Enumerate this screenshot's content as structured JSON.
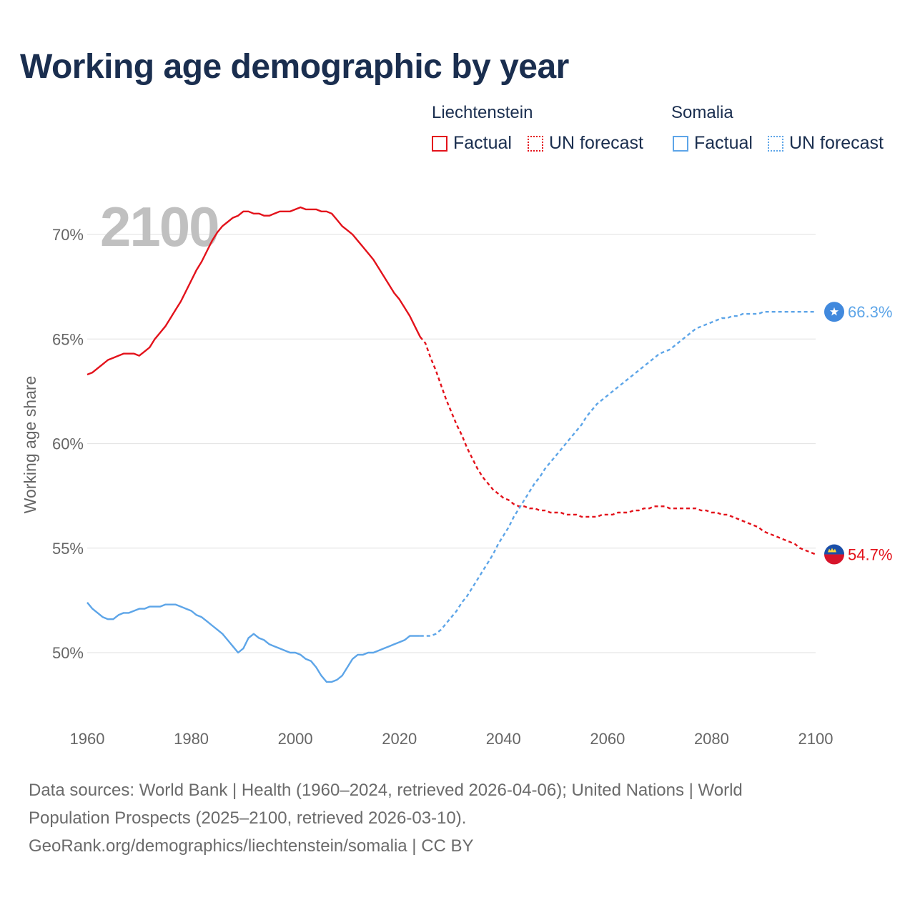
{
  "title": "Working age demographic by year",
  "legend": {
    "groups": [
      {
        "name": "Liechtenstein",
        "factual_label": "Factual",
        "forecast_label": "UN forecast",
        "color": "#e3121b"
      },
      {
        "name": "Somalia",
        "factual_label": "Factual",
        "forecast_label": "UN forecast",
        "color": "#5da5e8"
      }
    ]
  },
  "footer": {
    "line1": "Data sources: World Bank | Health (1960–2024, retrieved 2026-04-06); United Nations | World",
    "line2": "Population Prospects (2025–2100, retrieved 2026-03-10).",
    "line3": "GeoRank.org/demographics/liechtenstein/somalia | CC BY"
  },
  "chart_data": {
    "type": "line",
    "title": "Working age demographic by year",
    "xlabel": "",
    "ylabel": "Working age share",
    "year_overlay": "2100",
    "xlim": [
      1960,
      2100
    ],
    "ylim": [
      47,
      72.5
    ],
    "x_ticks": [
      1960,
      1980,
      2000,
      2020,
      2040,
      2060,
      2080,
      2100
    ],
    "x_tick_labels": [
      "1960",
      "1980",
      "2000",
      "2020",
      "2040",
      "2060",
      "2080",
      "2100"
    ],
    "y_ticks": [
      50,
      55,
      60,
      65,
      70
    ],
    "y_tick_labels": [
      "50%",
      "55%",
      "60%",
      "65%",
      "70%"
    ],
    "grid": true,
    "series": [
      {
        "name": "Liechtenstein",
        "color": "#e3121b",
        "end_label": "54.7%",
        "end_value": 54.7,
        "factual": {
          "x": [
            1960,
            1961,
            1962,
            1963,
            1964,
            1965,
            1966,
            1967,
            1968,
            1969,
            1970,
            1971,
            1972,
            1973,
            1974,
            1975,
            1976,
            1977,
            1978,
            1979,
            1980,
            1981,
            1982,
            1983,
            1984,
            1985,
            1986,
            1987,
            1988,
            1989,
            1990,
            1991,
            1992,
            1993,
            1994,
            1995,
            1996,
            1997,
            1998,
            1999,
            2000,
            2001,
            2002,
            2003,
            2004,
            2005,
            2006,
            2007,
            2008,
            2009,
            2010,
            2011,
            2012,
            2013,
            2014,
            2015,
            2016,
            2017,
            2018,
            2019,
            2020,
            2021,
            2022,
            2023,
            2024
          ],
          "y": [
            63.3,
            63.4,
            63.6,
            63.8,
            64.0,
            64.1,
            64.2,
            64.3,
            64.3,
            64.3,
            64.2,
            64.4,
            64.6,
            65.0,
            65.3,
            65.6,
            66.0,
            66.4,
            66.8,
            67.3,
            67.8,
            68.3,
            68.7,
            69.2,
            69.7,
            70.1,
            70.4,
            70.6,
            70.8,
            70.9,
            71.1,
            71.1,
            71.0,
            71.0,
            70.9,
            70.9,
            71.0,
            71.1,
            71.1,
            71.1,
            71.2,
            71.3,
            71.2,
            71.2,
            71.2,
            71.1,
            71.1,
            71.0,
            70.7,
            70.4,
            70.2,
            70.0,
            69.7,
            69.4,
            69.1,
            68.8,
            68.4,
            68.0,
            67.6,
            67.2,
            66.9,
            66.5,
            66.1,
            65.6,
            65.1
          ]
        },
        "forecast": {
          "x": [
            2024,
            2025,
            2026,
            2027,
            2028,
            2029,
            2030,
            2031,
            2032,
            2033,
            2034,
            2035,
            2036,
            2037,
            2038,
            2039,
            2040,
            2041,
            2042,
            2043,
            2044,
            2045,
            2046,
            2047,
            2048,
            2049,
            2050,
            2051,
            2052,
            2053,
            2054,
            2055,
            2056,
            2057,
            2058,
            2059,
            2060,
            2061,
            2062,
            2063,
            2064,
            2065,
            2066,
            2067,
            2068,
            2069,
            2070,
            2071,
            2072,
            2073,
            2074,
            2075,
            2076,
            2077,
            2078,
            2079,
            2080,
            2081,
            2082,
            2083,
            2084,
            2085,
            2086,
            2087,
            2088,
            2089,
            2090,
            2091,
            2092,
            2093,
            2094,
            2095,
            2096,
            2097,
            2098,
            2099,
            2100
          ],
          "y": [
            65.1,
            64.8,
            64.1,
            63.5,
            62.8,
            62.1,
            61.5,
            60.9,
            60.4,
            59.8,
            59.3,
            58.8,
            58.4,
            58.1,
            57.8,
            57.6,
            57.4,
            57.3,
            57.1,
            57.0,
            57.0,
            56.9,
            56.9,
            56.8,
            56.8,
            56.7,
            56.7,
            56.7,
            56.6,
            56.6,
            56.6,
            56.5,
            56.5,
            56.5,
            56.5,
            56.6,
            56.6,
            56.6,
            56.7,
            56.7,
            56.7,
            56.8,
            56.8,
            56.9,
            56.9,
            57.0,
            57.0,
            57.0,
            56.9,
            56.9,
            56.9,
            56.9,
            56.9,
            56.9,
            56.8,
            56.8,
            56.7,
            56.7,
            56.6,
            56.6,
            56.5,
            56.4,
            56.3,
            56.2,
            56.1,
            56.0,
            55.8,
            55.7,
            55.6,
            55.5,
            55.4,
            55.3,
            55.2,
            55.0,
            54.9,
            54.8,
            54.7
          ]
        }
      },
      {
        "name": "Somalia",
        "color": "#5da5e8",
        "end_label": "66.3%",
        "end_value": 66.3,
        "factual": {
          "x": [
            1960,
            1961,
            1962,
            1963,
            1964,
            1965,
            1966,
            1967,
            1968,
            1969,
            1970,
            1971,
            1972,
            1973,
            1974,
            1975,
            1976,
            1977,
            1978,
            1979,
            1980,
            1981,
            1982,
            1983,
            1984,
            1985,
            1986,
            1987,
            1988,
            1989,
            1990,
            1991,
            1992,
            1993,
            1994,
            1995,
            1996,
            1997,
            1998,
            1999,
            2000,
            2001,
            2002,
            2003,
            2004,
            2005,
            2006,
            2007,
            2008,
            2009,
            2010,
            2011,
            2012,
            2013,
            2014,
            2015,
            2016,
            2017,
            2018,
            2019,
            2020,
            2021,
            2022,
            2023,
            2024
          ],
          "y": [
            52.4,
            52.1,
            51.9,
            51.7,
            51.6,
            51.6,
            51.8,
            51.9,
            51.9,
            52.0,
            52.1,
            52.1,
            52.2,
            52.2,
            52.2,
            52.3,
            52.3,
            52.3,
            52.2,
            52.1,
            52.0,
            51.8,
            51.7,
            51.5,
            51.3,
            51.1,
            50.9,
            50.6,
            50.3,
            50.0,
            50.2,
            50.7,
            50.9,
            50.7,
            50.6,
            50.4,
            50.3,
            50.2,
            50.1,
            50.0,
            50.0,
            49.9,
            49.7,
            49.6,
            49.3,
            48.9,
            48.6,
            48.6,
            48.7,
            48.9,
            49.3,
            49.7,
            49.9,
            49.9,
            50.0,
            50.0,
            50.1,
            50.2,
            50.3,
            50.4,
            50.5,
            50.6,
            50.8,
            50.8,
            50.8
          ]
        },
        "forecast": {
          "x": [
            2024,
            2025,
            2026,
            2027,
            2028,
            2029,
            2030,
            2031,
            2032,
            2033,
            2034,
            2035,
            2036,
            2037,
            2038,
            2039,
            2040,
            2041,
            2042,
            2043,
            2044,
            2045,
            2046,
            2047,
            2048,
            2049,
            2050,
            2051,
            2052,
            2053,
            2054,
            2055,
            2056,
            2057,
            2058,
            2059,
            2060,
            2061,
            2062,
            2063,
            2064,
            2065,
            2066,
            2067,
            2068,
            2069,
            2070,
            2071,
            2072,
            2073,
            2074,
            2075,
            2076,
            2077,
            2078,
            2079,
            2080,
            2081,
            2082,
            2083,
            2084,
            2085,
            2086,
            2087,
            2088,
            2089,
            2090,
            2091,
            2092,
            2093,
            2094,
            2095,
            2096,
            2097,
            2098,
            2099,
            2100
          ],
          "y": [
            50.8,
            50.8,
            50.8,
            50.9,
            51.1,
            51.4,
            51.7,
            52.0,
            52.4,
            52.7,
            53.1,
            53.5,
            53.9,
            54.3,
            54.7,
            55.2,
            55.6,
            56.0,
            56.5,
            56.9,
            57.3,
            57.7,
            58.1,
            58.4,
            58.8,
            59.1,
            59.4,
            59.7,
            60.0,
            60.3,
            60.6,
            60.9,
            61.3,
            61.6,
            61.9,
            62.1,
            62.3,
            62.5,
            62.7,
            62.9,
            63.1,
            63.3,
            63.5,
            63.7,
            63.9,
            64.1,
            64.3,
            64.4,
            64.5,
            64.7,
            64.9,
            65.1,
            65.3,
            65.5,
            65.6,
            65.7,
            65.8,
            65.9,
            66.0,
            66.0,
            66.1,
            66.1,
            66.2,
            66.2,
            66.2,
            66.2,
            66.3,
            66.3,
            66.3,
            66.3,
            66.3,
            66.3,
            66.3,
            66.3,
            66.3,
            66.3,
            66.3
          ]
        }
      }
    ]
  }
}
